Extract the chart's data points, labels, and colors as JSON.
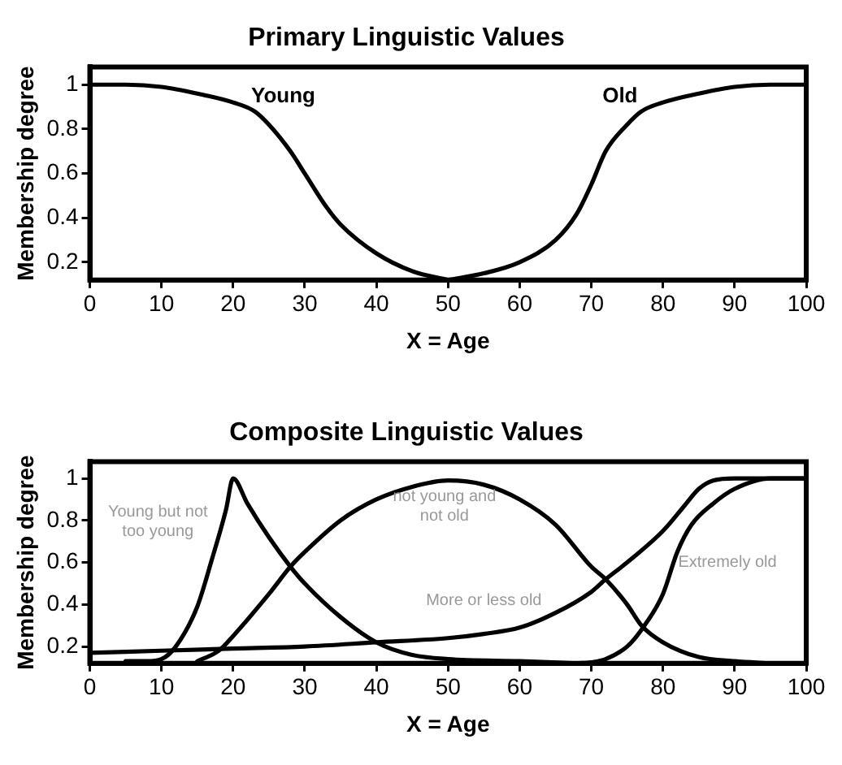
{
  "chart_data": [
    {
      "type": "line",
      "title": "Primary Linguistic Values",
      "xlabel": "X = Age",
      "ylabel": "Membership degree",
      "marker": "none",
      "line_style": "solid",
      "xlim": [
        0,
        100
      ],
      "xticks": [
        0,
        10,
        20,
        30,
        40,
        50,
        60,
        70,
        80,
        90,
        100
      ],
      "ylim": [
        0.12,
        1.08
      ],
      "yticks": [
        0.2,
        0.4,
        0.6,
        0.8,
        1
      ],
      "series": [
        {
          "name": "Young",
          "color": "#000000",
          "x": [
            0,
            5,
            10,
            15,
            20,
            23,
            25,
            28,
            30,
            33,
            35,
            40,
            45,
            50
          ],
          "values": [
            1,
            1,
            0.99,
            0.96,
            0.92,
            0.88,
            0.82,
            0.7,
            0.6,
            0.45,
            0.37,
            0.24,
            0.16,
            0.12
          ]
        },
        {
          "name": "Old",
          "color": "#000000",
          "x": [
            50,
            55,
            60,
            65,
            68,
            70,
            72,
            75,
            77,
            80,
            85,
            90,
            95,
            100
          ],
          "values": [
            0.12,
            0.15,
            0.2,
            0.3,
            0.42,
            0.55,
            0.7,
            0.82,
            0.88,
            0.92,
            0.96,
            0.99,
            1,
            1
          ]
        }
      ]
    },
    {
      "type": "line",
      "title": "Composite Linguistic Values",
      "xlabel": "X = Age",
      "ylabel": "Membership degree",
      "marker": "none",
      "line_style": "solid",
      "xlim": [
        0,
        100
      ],
      "xticks": [
        0,
        10,
        20,
        30,
        40,
        50,
        60,
        70,
        80,
        90,
        100
      ],
      "ylim": [
        0.12,
        1.08
      ],
      "yticks": [
        0.2,
        0.4,
        0.6,
        0.8,
        1
      ],
      "series": [
        {
          "name": "Young but not too young",
          "color": "#000000",
          "x": [
            5,
            8,
            10,
            12,
            15,
            17,
            19,
            20,
            22,
            25,
            28,
            30,
            35,
            40,
            45,
            50,
            60,
            68
          ],
          "values": [
            0.13,
            0.13,
            0.14,
            0.2,
            0.39,
            0.61,
            0.85,
            1,
            0.88,
            0.72,
            0.58,
            0.5,
            0.34,
            0.22,
            0.16,
            0.14,
            0.13,
            0.12
          ]
        },
        {
          "name": "not young and not old",
          "color": "#000000",
          "x": [
            15,
            18,
            20,
            25,
            28,
            30,
            35,
            40,
            45,
            50,
            55,
            60,
            65,
            70,
            72,
            75,
            77,
            80,
            85,
            90,
            95
          ],
          "values": [
            0.13,
            0.18,
            0.25,
            0.45,
            0.58,
            0.65,
            0.8,
            0.9,
            0.96,
            0.99,
            0.97,
            0.9,
            0.78,
            0.58,
            0.52,
            0.4,
            0.3,
            0.22,
            0.15,
            0.13,
            0.12
          ]
        },
        {
          "name": "More or less old",
          "color": "#000000",
          "x": [
            0,
            10,
            20,
            30,
            40,
            50,
            55,
            60,
            65,
            70,
            72,
            75,
            80,
            83,
            85,
            87,
            90,
            100
          ],
          "values": [
            0.17,
            0.18,
            0.19,
            0.2,
            0.22,
            0.24,
            0.26,
            0.29,
            0.36,
            0.46,
            0.52,
            0.6,
            0.75,
            0.87,
            0.95,
            0.99,
            1,
            1
          ]
        },
        {
          "name": "Extremely old",
          "color": "#000000",
          "x": [
            68,
            70,
            72,
            75,
            77,
            80,
            82,
            84,
            87,
            90,
            95,
            100
          ],
          "values": [
            0.12,
            0.125,
            0.14,
            0.2,
            0.28,
            0.45,
            0.65,
            0.78,
            0.88,
            0.95,
            1,
            1
          ]
        }
      ]
    }
  ]
}
